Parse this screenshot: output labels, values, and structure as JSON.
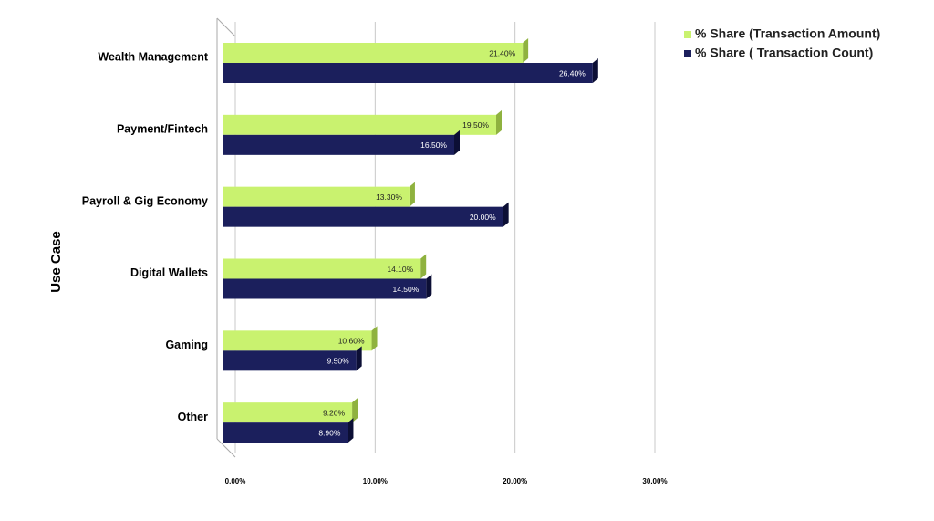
{
  "chart_data": {
    "type": "bar",
    "orientation": "horizontal",
    "ylabel": "Use Case",
    "categories": [
      "Wealth Management",
      "Payment/Fintech",
      "Payroll & Gig Economy",
      "Digital Wallets",
      "Gaming",
      "Other"
    ],
    "series": [
      {
        "name": "% Share (Transaction Amount)",
        "color": "#c9f26f",
        "values": [
          21.4,
          19.5,
          13.3,
          14.1,
          10.6,
          9.2
        ],
        "value_labels": [
          "21.40%",
          "19.50%",
          "13.30%",
          "14.10%",
          "10.60%",
          "9.20%"
        ]
      },
      {
        "name": "% Share ( Transaction Count)",
        "color": "#1b1f5c",
        "values": [
          26.4,
          16.5,
          20.0,
          14.5,
          9.5,
          8.9
        ],
        "value_labels": [
          "26.40%",
          "16.50%",
          "20.00%",
          "14.50%",
          "9.50%",
          "8.90%"
        ]
      }
    ],
    "xlim": [
      0,
      30
    ],
    "xticks": [
      {
        "value": 0,
        "label": "0.00%"
      },
      {
        "value": 10,
        "label": "10.00%"
      },
      {
        "value": 20,
        "label": "20.00%"
      },
      {
        "value": 30,
        "label": "30.00%"
      }
    ],
    "grid": true,
    "legend": "top-right"
  }
}
